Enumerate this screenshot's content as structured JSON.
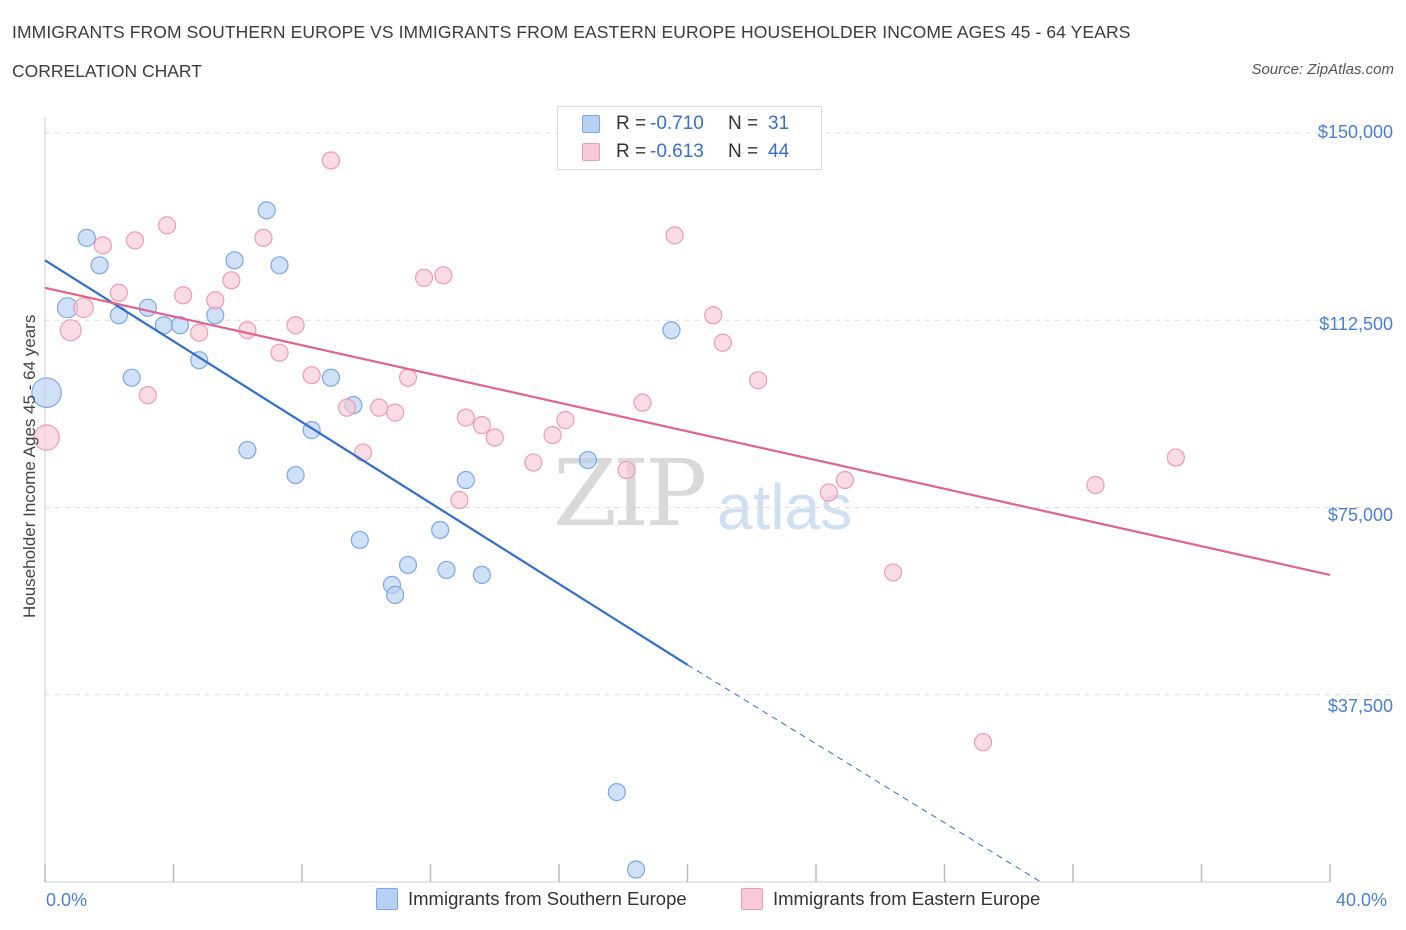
{
  "chart_data": {
    "type": "scatter",
    "title": "IMMIGRANTS FROM SOUTHERN EUROPE VS IMMIGRANTS FROM EASTERN EUROPE HOUSEHOLDER INCOME AGES 45 - 64 YEARS",
    "subtitle": "CORRELATION CHART",
    "source": "Source: ZipAtlas.com",
    "ylabel": "Householder Income Ages 45 - 64 years",
    "xlim": [
      0,
      40
    ],
    "ylim": [
      0,
      150000
    ],
    "x_tick_labels": [
      "0.0%",
      "40.0%"
    ],
    "y_tick_labels": [
      "$150,000",
      "$112,500",
      "$75,000",
      "$37,500"
    ],
    "y_tick_values": [
      150000,
      112500,
      75000,
      37500
    ],
    "legend": [
      {
        "r_label": "R =",
        "r": "-0.710",
        "n_label": "N =",
        "n": "31"
      },
      {
        "r_label": "R =",
        "r": "-0.613",
        "n_label": "N =",
        "n": "44"
      }
    ],
    "series": [
      {
        "name": "Immigrants from Southern Europe",
        "color": "#7aa8e8",
        "fill": "#b7d0f3",
        "trend": {
          "x0": 0,
          "y0": 124500,
          "x1": 20,
          "y1": 43500,
          "dash_to_x": 31,
          "dash_to_y": 0
        },
        "points": [
          {
            "x": 0.05,
            "y": 98000,
            "s": 3
          },
          {
            "x": 0.7,
            "y": 115000,
            "s": 1.4
          },
          {
            "x": 1.3,
            "y": 129000,
            "s": 1
          },
          {
            "x": 1.7,
            "y": 123500,
            "s": 1
          },
          {
            "x": 2.3,
            "y": 113500,
            "s": 1
          },
          {
            "x": 2.7,
            "y": 101000,
            "s": 1
          },
          {
            "x": 3.2,
            "y": 115000,
            "s": 1
          },
          {
            "x": 3.7,
            "y": 111500,
            "s": 1
          },
          {
            "x": 4.2,
            "y": 111500,
            "s": 1
          },
          {
            "x": 4.8,
            "y": 104500,
            "s": 1
          },
          {
            "x": 5.3,
            "y": 113500,
            "s": 1
          },
          {
            "x": 5.9,
            "y": 124500,
            "s": 1
          },
          {
            "x": 6.3,
            "y": 86500,
            "s": 1
          },
          {
            "x": 6.9,
            "y": 134500,
            "s": 1
          },
          {
            "x": 7.3,
            "y": 123500,
            "s": 1
          },
          {
            "x": 7.8,
            "y": 81500,
            "s": 1
          },
          {
            "x": 8.3,
            "y": 90500,
            "s": 1
          },
          {
            "x": 8.9,
            "y": 101000,
            "s": 1
          },
          {
            "x": 9.6,
            "y": 95500,
            "s": 1
          },
          {
            "x": 9.8,
            "y": 68500,
            "s": 1
          },
          {
            "x": 10.8,
            "y": 59500,
            "s": 1
          },
          {
            "x": 10.9,
            "y": 57500,
            "s": 1
          },
          {
            "x": 11.3,
            "y": 63500,
            "s": 1
          },
          {
            "x": 12.3,
            "y": 70500,
            "s": 1
          },
          {
            "x": 12.5,
            "y": 62500,
            "s": 1
          },
          {
            "x": 13.1,
            "y": 80500,
            "s": 1
          },
          {
            "x": 13.6,
            "y": 61500,
            "s": 1
          },
          {
            "x": 16.9,
            "y": 84500,
            "s": 1
          },
          {
            "x": 17.8,
            "y": 18000,
            "s": 1
          },
          {
            "x": 18.4,
            "y": 2500,
            "s": 1
          },
          {
            "x": 19.5,
            "y": 110500,
            "s": 1
          }
        ]
      },
      {
        "name": "Immigrants from Eastern Europe",
        "color": "#ee9bb5",
        "fill": "#f8c9d7",
        "trend": {
          "x0": 0,
          "y0": 119000,
          "x1": 40,
          "y1": 61500
        },
        "points": [
          {
            "x": 0.05,
            "y": 89000,
            "s": 2.2
          },
          {
            "x": 0.8,
            "y": 110500,
            "s": 1.5
          },
          {
            "x": 1.2,
            "y": 115000,
            "s": 1.3
          },
          {
            "x": 1.8,
            "y": 127500,
            "s": 1
          },
          {
            "x": 2.3,
            "y": 118000,
            "s": 1
          },
          {
            "x": 2.8,
            "y": 128500,
            "s": 1
          },
          {
            "x": 3.2,
            "y": 97500,
            "s": 1
          },
          {
            "x": 3.8,
            "y": 131500,
            "s": 1
          },
          {
            "x": 4.3,
            "y": 117500,
            "s": 1
          },
          {
            "x": 4.8,
            "y": 110000,
            "s": 1
          },
          {
            "x": 5.3,
            "y": 116500,
            "s": 1
          },
          {
            "x": 5.8,
            "y": 120500,
            "s": 1
          },
          {
            "x": 6.3,
            "y": 110500,
            "s": 1
          },
          {
            "x": 6.8,
            "y": 129000,
            "s": 1
          },
          {
            "x": 7.3,
            "y": 106000,
            "s": 1
          },
          {
            "x": 7.8,
            "y": 111500,
            "s": 1
          },
          {
            "x": 8.3,
            "y": 101500,
            "s": 1
          },
          {
            "x": 8.9,
            "y": 144500,
            "s": 1
          },
          {
            "x": 9.4,
            "y": 95000,
            "s": 1
          },
          {
            "x": 9.9,
            "y": 86000,
            "s": 1
          },
          {
            "x": 10.4,
            "y": 95000,
            "s": 1
          },
          {
            "x": 10.9,
            "y": 94000,
            "s": 1
          },
          {
            "x": 11.3,
            "y": 101000,
            "s": 1
          },
          {
            "x": 11.8,
            "y": 121000,
            "s": 1
          },
          {
            "x": 12.4,
            "y": 121500,
            "s": 1
          },
          {
            "x": 12.9,
            "y": 76500,
            "s": 1
          },
          {
            "x": 13.1,
            "y": 93000,
            "s": 1
          },
          {
            "x": 13.6,
            "y": 91500,
            "s": 1
          },
          {
            "x": 14.0,
            "y": 89000,
            "s": 1
          },
          {
            "x": 15.2,
            "y": 84000,
            "s": 1
          },
          {
            "x": 15.8,
            "y": 89500,
            "s": 1
          },
          {
            "x": 16.2,
            "y": 92500,
            "s": 1
          },
          {
            "x": 18.1,
            "y": 82500,
            "s": 1
          },
          {
            "x": 18.6,
            "y": 96000,
            "s": 1
          },
          {
            "x": 19.6,
            "y": 129500,
            "s": 1
          },
          {
            "x": 20.8,
            "y": 113500,
            "s": 1
          },
          {
            "x": 21.1,
            "y": 108000,
            "s": 1
          },
          {
            "x": 22.2,
            "y": 100500,
            "s": 1
          },
          {
            "x": 24.4,
            "y": 78000,
            "s": 1
          },
          {
            "x": 24.9,
            "y": 80500,
            "s": 1
          },
          {
            "x": 26.4,
            "y": 62000,
            "s": 1
          },
          {
            "x": 29.2,
            "y": 28000,
            "s": 1
          },
          {
            "x": 32.7,
            "y": 79500,
            "s": 1
          },
          {
            "x": 35.2,
            "y": 85000,
            "s": 1
          }
        ]
      }
    ]
  },
  "watermark": {
    "zip": "ZIP",
    "atlas": "atlas"
  },
  "legend_colors": {
    "blue_border": "#7aa8e8",
    "blue_fill": "#b7d0f3",
    "pink_border": "#ee9bb5",
    "pink_fill": "#f8c9d7"
  }
}
